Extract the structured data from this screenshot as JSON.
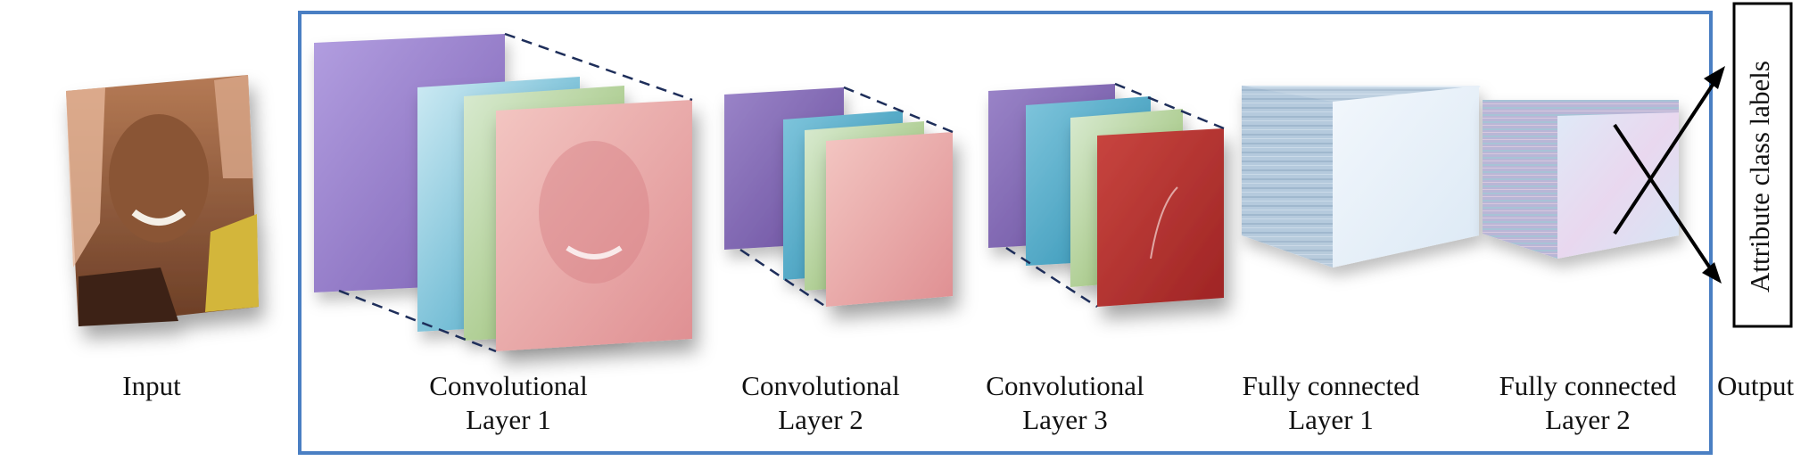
{
  "stages": {
    "input": "Input",
    "conv1": [
      "Convolutional",
      "Layer 1"
    ],
    "conv2": [
      "Convolutional",
      "Layer 2"
    ],
    "conv3": [
      "Convolutional",
      "Layer 3"
    ],
    "fc1": [
      "Fully connected",
      "Layer 1"
    ],
    "fc2": [
      "Fully connected",
      "Layer 2"
    ],
    "output": "Output"
  },
  "output_box_label": "Attribute class labels",
  "colors": {
    "frame_border": "#4a7fc3",
    "projection_lines": "#1e2e5a",
    "map_purple": "#8a6fbf",
    "map_cyan": "#3fa9c6",
    "map_green": "#9cbf6e",
    "map_red": "#c4383a",
    "map_pink": "#e9a0a0",
    "fc_block": "#cfe2f1"
  }
}
